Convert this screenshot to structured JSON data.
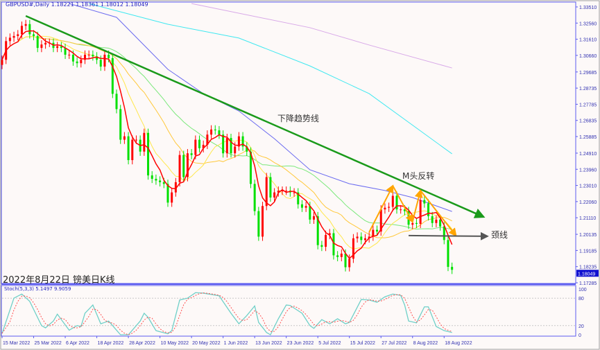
{
  "header": {
    "title": "GBPUSD#,Daily  1.18221 1.18361 1.18012 1.18049"
  },
  "caption": "2022年8月22日 镑美日K线",
  "annotations": {
    "trend": "下降趋势线",
    "m_top": "M头反转",
    "neckline": "颈线"
  },
  "colors": {
    "up": "#ff0000",
    "down": "#00e000",
    "axis": "#5a5af0",
    "ma5": "#ff0000",
    "ma10": "#ffe74a",
    "ma20": "#ffc83a",
    "ma30": "#7ae87a",
    "ma60": "#6a6af0",
    "ma120": "#3ee8f0",
    "ma200": "#d8a8e8",
    "trendline": "#1a9a1a",
    "m_pattern": "#ffa500",
    "neck": "#555555",
    "price_box": "#1010d0"
  },
  "chart_data": {
    "type": "candlestick",
    "symbol": "GBPUSD#",
    "timeframe": "Daily",
    "first_date": "2022-03-15",
    "close": [
      1.304,
      1.315,
      1.317,
      1.318,
      1.319,
      1.324,
      1.325,
      1.319,
      1.318,
      1.311,
      1.313,
      1.314,
      1.314,
      1.311,
      1.312,
      1.311,
      1.307,
      1.307,
      1.303,
      1.302,
      1.304,
      1.307,
      1.307,
      1.306,
      1.304,
      1.3,
      1.307,
      1.305,
      1.284,
      1.275,
      1.257,
      1.259,
      1.245,
      1.257,
      1.257,
      1.25,
      1.261,
      1.236,
      1.234,
      1.233,
      1.232,
      1.231,
      1.22,
      1.226,
      1.232,
      1.248,
      1.235,
      1.249,
      1.248,
      1.257,
      1.252,
      1.254,
      1.26,
      1.263,
      1.2625,
      1.26,
      1.249,
      1.258,
      1.249,
      1.253,
      1.259,
      1.253,
      1.25,
      1.231,
      1.215,
      1.2,
      1.218,
      1.235,
      1.223,
      1.226,
      1.227,
      1.227,
      1.227,
      1.226,
      1.226,
      1.219,
      1.217,
      1.218,
      1.21,
      1.212,
      1.195,
      1.194,
      1.201,
      1.202,
      1.189,
      1.188,
      1.19,
      1.182,
      1.187,
      1.199,
      1.2,
      1.198,
      1.199,
      1.2,
      1.204,
      1.203,
      1.216,
      1.217,
      1.2175,
      1.224,
      1.216,
      1.216,
      1.215,
      1.207,
      1.208,
      1.2075,
      1.2215,
      1.2195,
      1.212,
      1.208,
      1.21,
      1.206,
      1.198,
      1.1822,
      1.18049
    ],
    "last_ohlc": {
      "open": 1.18221,
      "high": 1.18361,
      "low": 1.18012,
      "close": 1.18049
    },
    "moving_averages": [
      {
        "key": "ma60",
        "points": [
          [
            "2022-04-07",
            1.3371
          ],
          [
            "2022-04-25",
            1.329
          ],
          [
            "2022-05-12",
            1.2984
          ],
          [
            "2022-05-25",
            1.2841
          ],
          [
            "2022-06-07",
            1.2739
          ],
          [
            "2022-06-20",
            1.2576
          ],
          [
            "2022-07-01",
            1.2393
          ],
          [
            "2022-07-15",
            1.2311
          ],
          [
            "2022-07-28",
            1.2271
          ],
          [
            "2022-08-08",
            1.223
          ],
          [
            "2022-08-22",
            1.2148
          ]
        ]
      },
      {
        "key": "ma120",
        "points": [
          [
            "2022-04-14",
            1.3371
          ],
          [
            "2022-05-12",
            1.3249
          ],
          [
            "2022-06-07",
            1.3168
          ],
          [
            "2022-07-01",
            1.3004
          ],
          [
            "2022-07-22",
            1.2841
          ],
          [
            "2022-08-22",
            1.2487
          ]
        ]
      },
      {
        "key": "ma200",
        "points": [
          [
            "2022-05-20",
            1.3371
          ],
          [
            "2022-07-01",
            1.3229
          ],
          [
            "2022-07-22",
            1.3127
          ],
          [
            "2022-08-22",
            1.2992
          ]
        ]
      }
    ],
    "trendline": [
      [
        "2022-03-23",
        1.3298
      ],
      [
        "2022-09-01",
        1.2116
      ]
    ],
    "m_pattern": [
      [
        "2022-07-22",
        1.2026
      ],
      [
        "2022-08-01",
        1.2299
      ],
      [
        "2022-08-08",
        1.2087
      ],
      [
        "2022-08-10",
        1.2271
      ],
      [
        "2022-08-23",
        1.2006
      ]
    ],
    "neckline": [
      [
        "2022-08-05",
        1.2006
      ],
      [
        "2022-09-02",
        1.2002
      ]
    ],
    "y_ticks": [
      "1.33510",
      "1.32560",
      "1.31610",
      "1.30660",
      "1.29685",
      "1.28735",
      "1.27785",
      "1.26835",
      "1.25885",
      "1.24910",
      "1.23960",
      "1.23010",
      "1.22060",
      "1.21110",
      "1.20135",
      "1.19185",
      "1.18235",
      "1.17285"
    ],
    "ylim": [
      1.17285,
      1.3351
    ],
    "current_price": "1.18049",
    "x_ticks": [
      [
        "2022-03-15",
        "15 Mar 2022"
      ],
      [
        "2022-03-25",
        "25 Mar 2022"
      ],
      [
        "2022-04-06",
        "6 Apr 2022"
      ],
      [
        "2022-04-18",
        "18 Apr 2022"
      ],
      [
        "2022-04-28",
        "28 Apr 2022"
      ],
      [
        "2022-05-10",
        "10 May 2022"
      ],
      [
        "2022-05-20",
        "20 May 2022"
      ],
      [
        "2022-06-01",
        "1 Jun 2022"
      ],
      [
        "2022-06-13",
        "13 Jun 2022"
      ],
      [
        "2022-06-23",
        "23 Jun 2022"
      ],
      [
        "2022-07-05",
        "5 Jul 2022"
      ],
      [
        "2022-07-15",
        "15 Jul 2022"
      ],
      [
        "2022-07-27",
        "27 Jul 2022"
      ],
      [
        "2022-08-08",
        "8 Aug 2022"
      ],
      [
        "2022-08-18",
        "18 Aug 2022"
      ]
    ],
    "stochastic": {
      "label": "Stoch(5,3,3) 5.1497 9.9059",
      "params": [
        5,
        3,
        3
      ],
      "k_last": 5.1497,
      "d_last": 9.9059,
      "levels": [
        "100",
        "80",
        "20",
        "0"
      ],
      "k": [
        [
          "2022-03-15",
          3
        ],
        [
          "2022-03-18",
          80
        ],
        [
          "2022-03-22",
          89
        ],
        [
          "2022-03-24",
          73
        ],
        [
          "2022-03-29",
          20
        ],
        [
          "2022-03-30",
          15
        ],
        [
          "2022-04-01",
          30
        ],
        [
          "2022-04-04",
          45
        ],
        [
          "2022-04-07",
          10
        ],
        [
          "2022-04-11",
          20
        ],
        [
          "2022-04-12",
          18
        ],
        [
          "2022-04-13",
          47
        ],
        [
          "2022-04-15",
          65
        ],
        [
          "2022-04-19",
          24
        ],
        [
          "2022-04-21",
          30
        ],
        [
          "2022-04-26",
          0
        ],
        [
          "2022-04-28",
          0
        ],
        [
          "2022-05-03",
          30
        ],
        [
          "2022-05-04",
          47
        ],
        [
          "2022-05-05",
          38
        ],
        [
          "2022-05-09",
          9
        ],
        [
          "2022-05-12",
          2
        ],
        [
          "2022-05-13",
          9
        ],
        [
          "2022-05-17",
          76
        ],
        [
          "2022-05-19",
          80
        ],
        [
          "2022-05-23",
          92
        ],
        [
          "2022-05-25",
          91
        ],
        [
          "2022-05-31",
          85
        ],
        [
          "2022-06-03",
          47
        ],
        [
          "2022-06-07",
          24
        ],
        [
          "2022-06-09",
          42
        ],
        [
          "2022-06-13",
          63
        ],
        [
          "2022-06-14",
          27
        ],
        [
          "2022-06-16",
          5
        ],
        [
          "2022-06-17",
          0
        ],
        [
          "2022-06-21",
          35
        ],
        [
          "2022-06-23",
          65
        ],
        [
          "2022-06-24",
          64
        ],
        [
          "2022-06-29",
          47
        ],
        [
          "2022-07-01",
          20
        ],
        [
          "2022-07-04",
          14
        ],
        [
          "2022-07-06",
          33
        ],
        [
          "2022-07-08",
          24
        ],
        [
          "2022-07-12",
          35
        ],
        [
          "2022-07-14",
          24
        ],
        [
          "2022-07-15",
          27
        ],
        [
          "2022-07-20",
          77
        ],
        [
          "2022-07-22",
          76
        ],
        [
          "2022-07-26",
          71
        ],
        [
          "2022-07-28",
          83
        ],
        [
          "2022-08-01",
          89
        ],
        [
          "2022-08-03",
          86
        ],
        [
          "2022-08-04",
          65
        ],
        [
          "2022-08-05",
          30
        ],
        [
          "2022-08-09",
          26
        ],
        [
          "2022-08-11",
          61
        ],
        [
          "2022-08-12",
          61
        ],
        [
          "2022-08-16",
          18
        ],
        [
          "2022-08-18",
          9
        ],
        [
          "2022-08-22",
          5
        ]
      ]
    }
  }
}
